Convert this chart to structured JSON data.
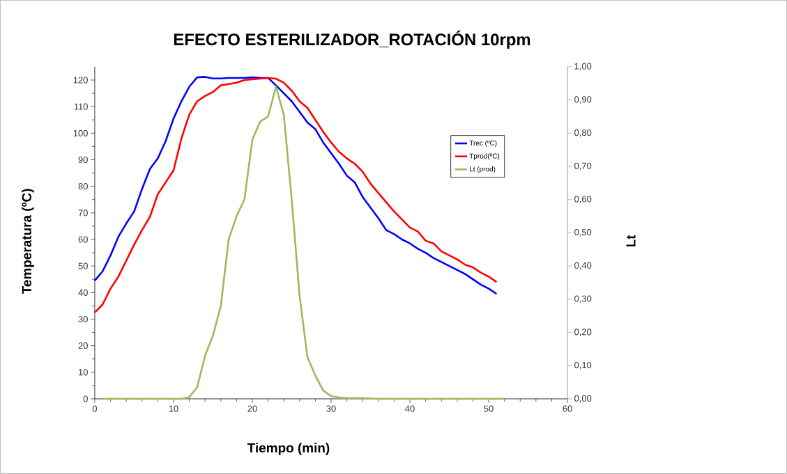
{
  "chart_data": {
    "type": "line",
    "title": "EFECTO ESTERILIZADOR_ROTACIÓN 10rpm",
    "xlabel": "Tiempo (min)",
    "ylabel": "Temperatura (ºC)",
    "y2label": "Lt",
    "x": [
      0,
      1,
      2,
      3,
      4,
      5,
      6,
      7,
      8,
      9,
      10,
      11,
      12,
      13,
      14,
      15,
      16,
      17,
      18,
      19,
      20,
      21,
      22,
      23,
      24,
      25,
      26,
      27,
      28,
      29,
      30,
      31,
      32,
      33,
      34,
      35,
      36,
      37,
      38,
      39,
      40,
      41,
      42,
      43,
      44,
      45,
      46,
      47,
      48,
      49,
      50,
      51
    ],
    "series": [
      {
        "name": "Trec (ºC)",
        "color": "#0000ff",
        "values": [
          44.5,
          48,
          54,
          61,
          66,
          70.5,
          79,
          86.5,
          90.5,
          97,
          105.5,
          112,
          117.5,
          121,
          121.2,
          120.6,
          120.6,
          120.8,
          120.8,
          120.8,
          121,
          120.8,
          120.8,
          118,
          115,
          112,
          108,
          104,
          101.5,
          96.5,
          92.5,
          88.5,
          84,
          81.5,
          76,
          72,
          68,
          63.5,
          62,
          60,
          58.5,
          56.5,
          55,
          53,
          51.5,
          50,
          48.5,
          47,
          45,
          43,
          41.5,
          39.5
        ]
      },
      {
        "name": "Tprod(ºC)",
        "color": "#ff0000",
        "values": [
          32.5,
          35.5,
          41.5,
          46,
          52,
          58,
          63.5,
          68.5,
          77,
          81.5,
          86,
          98,
          107,
          112,
          114,
          115.5,
          118,
          118.5,
          119,
          120,
          120.3,
          120.5,
          120.8,
          120.5,
          119,
          116,
          112,
          109.5,
          105,
          100.5,
          96.5,
          93,
          90.5,
          88.5,
          85.5,
          81,
          77.5,
          74,
          70.5,
          67.5,
          64.5,
          63,
          59.5,
          58.5,
          55.5,
          54,
          52.5,
          50.5,
          49.5,
          47.5,
          46,
          44
        ]
      },
      {
        "name": "Lt (prod)",
        "color": "#9bbb59",
        "axis": "y2",
        "x": [
          1,
          2,
          3,
          4,
          5,
          6,
          7,
          8,
          9,
          10,
          11,
          12,
          13,
          14,
          15,
          16,
          17,
          18,
          19,
          20,
          21,
          22,
          23,
          24,
          25,
          26,
          27,
          28,
          29,
          30,
          31,
          32,
          33,
          34,
          35,
          36,
          37,
          38,
          39,
          40,
          41,
          42,
          43,
          44,
          45,
          46,
          47,
          48,
          49,
          50,
          51,
          52
        ],
        "values": [
          0,
          0,
          0,
          0,
          0,
          0,
          0,
          0,
          0,
          0,
          0,
          0.005,
          0.035,
          0.13,
          0.19,
          0.28,
          0.48,
          0.55,
          0.6,
          0.78,
          0.835,
          0.85,
          0.94,
          0.855,
          0.6,
          0.31,
          0.125,
          0.07,
          0.025,
          0.008,
          0.004,
          0.002,
          0.002,
          0.002,
          0.001,
          0,
          0,
          0,
          0,
          0,
          0,
          0,
          0,
          0,
          0,
          0,
          0,
          0,
          0,
          0,
          0,
          0
        ]
      }
    ],
    "xlim": [
      0,
      60
    ],
    "xticks": [
      0,
      10,
      20,
      30,
      40,
      50,
      60
    ],
    "ylim": [
      0,
      125
    ],
    "yticks": [
      0,
      10,
      20,
      30,
      40,
      50,
      60,
      70,
      80,
      90,
      100,
      110,
      120
    ],
    "y2lim": [
      0,
      1
    ],
    "y2ticks": [
      {
        "value": 0,
        "label": "0,00"
      },
      {
        "value": 0.1,
        "label": "0,10"
      },
      {
        "value": 0.2,
        "label": "0,20"
      },
      {
        "value": 0.3,
        "label": "0,30"
      },
      {
        "value": 0.4,
        "label": "0,40"
      },
      {
        "value": 0.5,
        "label": "0,50"
      },
      {
        "value": 0.6,
        "label": "0,60"
      },
      {
        "value": 0.7,
        "label": "0,70"
      },
      {
        "value": 0.8,
        "label": "0,80"
      },
      {
        "value": 0.9,
        "label": "0,90"
      },
      {
        "value": 1,
        "label": "1,00"
      }
    ],
    "grid": false,
    "legend": "right",
    "marker": "none",
    "line_style": "solid"
  }
}
